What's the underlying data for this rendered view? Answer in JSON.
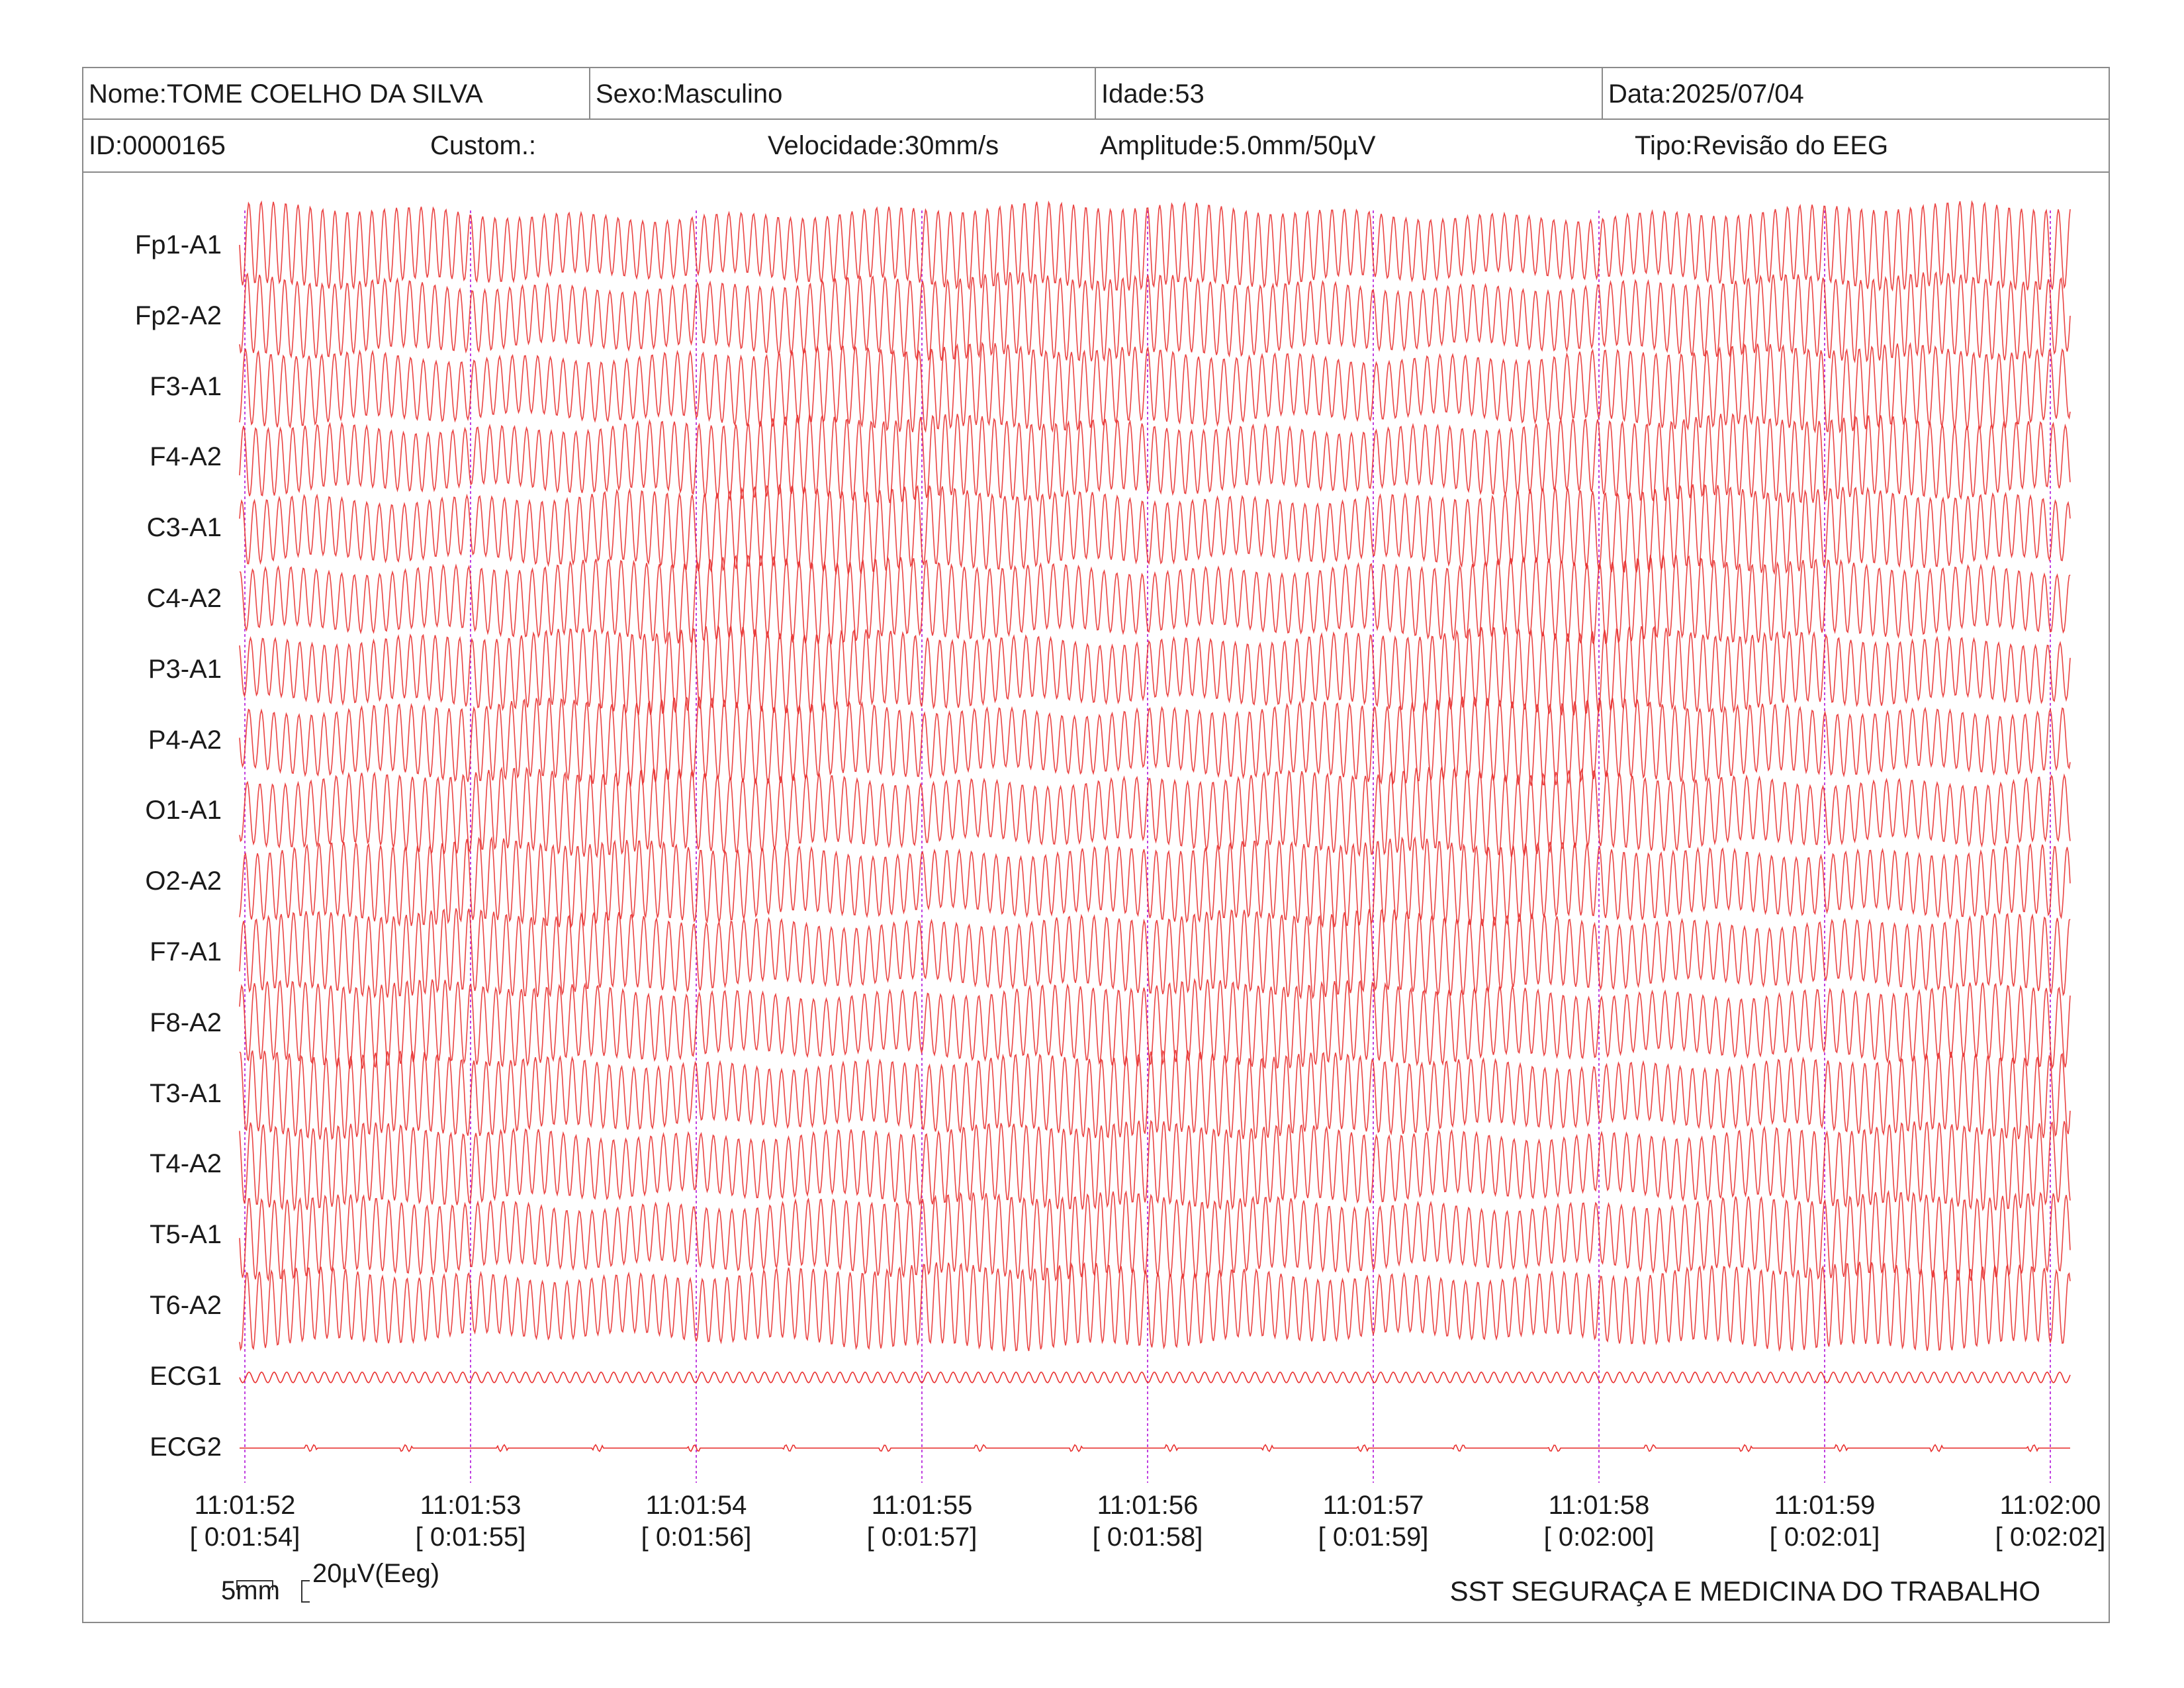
{
  "header": {
    "nome": "Nome:TOME COELHO DA SILVA",
    "sexo": "Sexo:Masculino",
    "idade": "Idade:53",
    "data": "Data:2025/07/04",
    "id": "ID:0000165",
    "custom": "Custom.:",
    "velocidade": "Velocidade:30mm/s",
    "amplitude": "Amplitude:5.0mm/50µV",
    "tipo": "Tipo:Revisão do EEG"
  },
  "channels": [
    "Fp1-A1",
    "Fp2-A2",
    "F3-A1",
    "F4-A2",
    "C3-A1",
    "C4-A2",
    "P3-A1",
    "P4-A2",
    "O1-A1",
    "O2-A2",
    "F7-A1",
    "F8-A2",
    "T3-A1",
    "T4-A2",
    "T5-A1",
    "T6-A2",
    "ECG1",
    "ECG2"
  ],
  "time_marks": [
    {
      "time": "11:01:52",
      "elapsed": "[ 0:01:54]"
    },
    {
      "time": "11:01:53",
      "elapsed": "[ 0:01:55]"
    },
    {
      "time": "11:01:54",
      "elapsed": "[ 0:01:56]"
    },
    {
      "time": "11:01:55",
      "elapsed": "[ 0:01:57]"
    },
    {
      "time": "11:01:56",
      "elapsed": "[ 0:01:58]"
    },
    {
      "time": "11:01:57",
      "elapsed": "[ 0:01:59]"
    },
    {
      "time": "11:01:58",
      "elapsed": "[ 0:02:00]"
    },
    {
      "time": "11:01:59",
      "elapsed": "[ 0:02:01]"
    },
    {
      "time": "11:02:00",
      "elapsed": "[ 0:02:02]"
    }
  ],
  "calibration": {
    "time_label": "5mm",
    "amp_label": "20µV(Eeg)"
  },
  "footer": "SST SEGURAÇA E MEDICINA DO TRABALHO",
  "colors": {
    "trace": "#e8302f",
    "marker": "#c040e0",
    "border": "#8a8a8a"
  }
}
